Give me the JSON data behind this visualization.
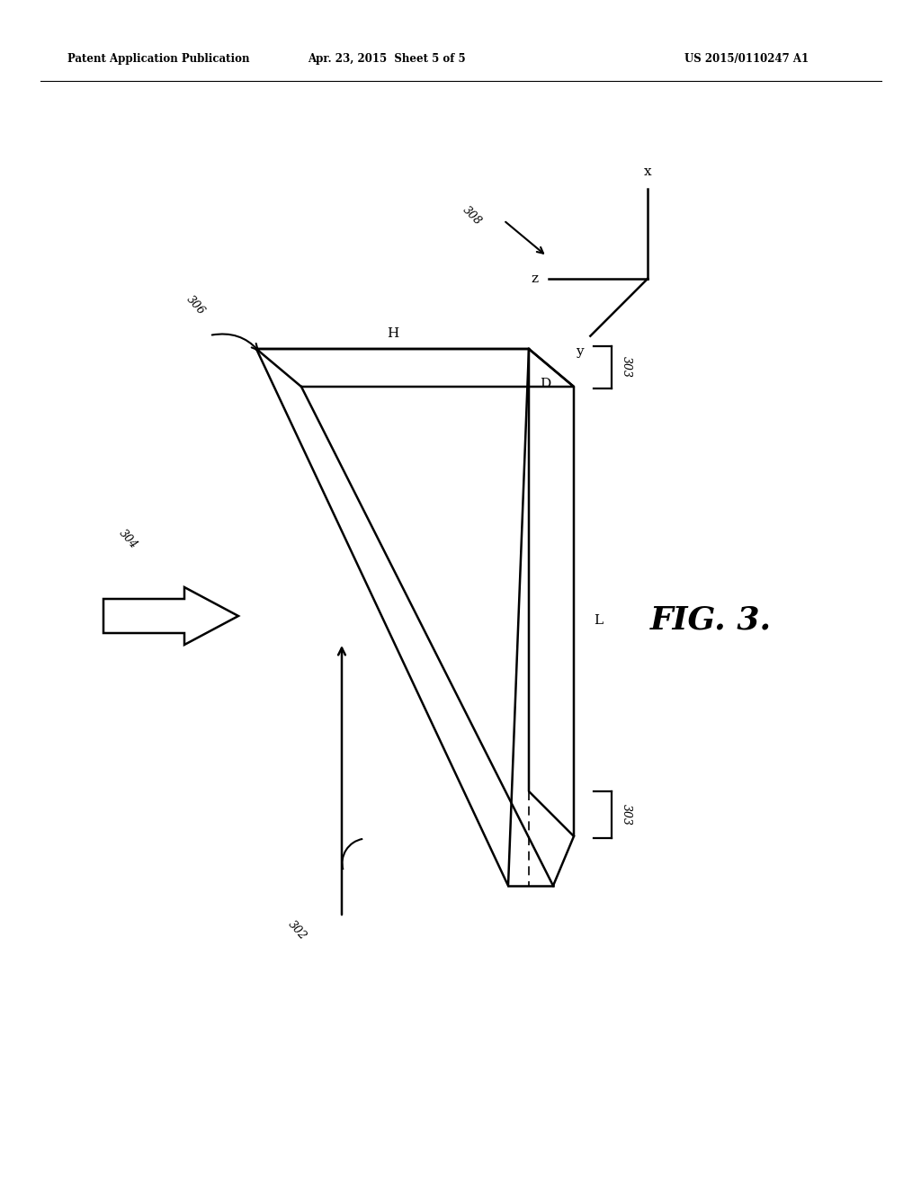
{
  "header_left": "Patent Application Publication",
  "header_mid": "Apr. 23, 2015  Sheet 5 of 5",
  "header_right": "US 2015/0110247 A1",
  "fig_label": "FIG. 3.",
  "label_308": "308",
  "label_306": "306",
  "label_304": "304",
  "label_302": "302",
  "label_303": "303",
  "label_H": "H",
  "label_D": "D",
  "label_L": "L",
  "label_x": "x",
  "label_y": "y",
  "label_z": "z",
  "bg_color": "#ffffff",
  "line_color": "#000000"
}
